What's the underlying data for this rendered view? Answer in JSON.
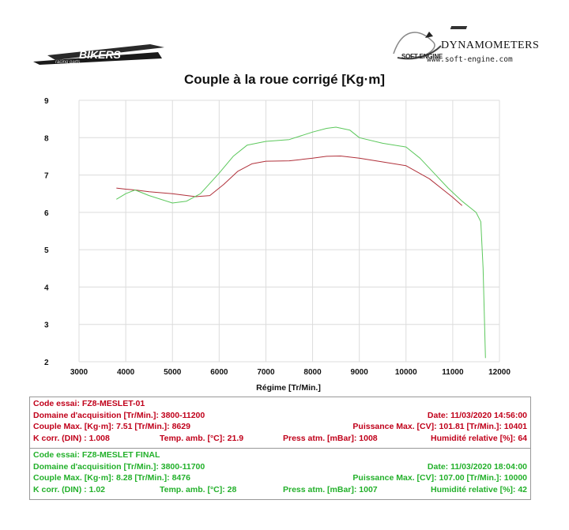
{
  "header": {
    "brand_name": "DYNAMOMETERS",
    "brand_engine": "SOFT-ENGINE",
    "brand_url": "www.soft-engine.com",
    "logo_left_text": "BIKERS racing parts"
  },
  "chart_data": {
    "type": "line",
    "title": "Couple à la roue corrigé [Kg·m]",
    "xlabel": "Régime [Tr/Min.]",
    "ylabel": "",
    "xlim": [
      3000,
      12000
    ],
    "ylim": [
      2,
      9
    ],
    "x_ticks": [
      3000,
      4000,
      5000,
      6000,
      7000,
      8000,
      9000,
      10000,
      11000,
      12000
    ],
    "y_ticks": [
      2,
      3,
      4,
      5,
      6,
      7,
      8,
      9
    ],
    "grid": true,
    "series": [
      {
        "name": "FZ8-MESLET-01",
        "color": "#b0303a",
        "x": [
          3800,
          4000,
          4200,
          4500,
          5000,
          5500,
          5800,
          6100,
          6400,
          6700,
          7000,
          7500,
          8000,
          8300,
          8600,
          9000,
          9500,
          10000,
          10500,
          10800,
          11000,
          11200
        ],
        "y": [
          6.65,
          6.62,
          6.6,
          6.55,
          6.5,
          6.42,
          6.45,
          6.75,
          7.1,
          7.3,
          7.37,
          7.38,
          7.45,
          7.5,
          7.51,
          7.45,
          7.35,
          7.25,
          6.9,
          6.6,
          6.4,
          6.18
        ]
      },
      {
        "name": "FZ8-MESLET FINAL",
        "color": "#5cc85c",
        "x": [
          3800,
          4000,
          4200,
          4500,
          5000,
          5300,
          5600,
          6000,
          6300,
          6600,
          7000,
          7500,
          8000,
          8300,
          8500,
          8800,
          9000,
          9500,
          10000,
          10300,
          10600,
          10900,
          11200,
          11500,
          11600,
          11650,
          11700
        ],
        "y": [
          6.35,
          6.5,
          6.6,
          6.45,
          6.25,
          6.3,
          6.5,
          7.05,
          7.5,
          7.8,
          7.9,
          7.95,
          8.15,
          8.25,
          8.28,
          8.2,
          8.0,
          7.85,
          7.75,
          7.45,
          7.05,
          6.65,
          6.3,
          6.0,
          5.75,
          4.5,
          2.1
        ]
      }
    ]
  },
  "test_red": {
    "code": "Code essai: FZ8-MESLET-01",
    "domain": "Domaine d'acquisition [Tr/Min.]: 3800-11200",
    "date": "Date: 11/03/2020   14:56:00",
    "couple": "Couple Max. [Kg·m]: 7.51   [Tr/Min.]: 8629",
    "puissance": "Puissance Max. [CV]: 101.81   [Tr/Min.]: 10401",
    "kcorr": "K corr. (DIN) : 1.008",
    "temp": "Temp. amb. [°C]: 21.9",
    "press": "Press atm. [mBar]: 1008",
    "humid": "Humidité relative [%]: 64"
  },
  "test_green": {
    "code": "Code essai: FZ8-MESLET FINAL",
    "domain": "Domaine d'acquisition [Tr/Min.]: 3800-11700",
    "date": "Date: 11/03/2020   18:04:00",
    "couple": "Couple Max. [Kg·m]: 8.28   [Tr/Min.]: 8476",
    "puissance": "Puissance Max. [CV]: 107.00   [Tr/Min.]: 10000",
    "kcorr": "K corr. (DIN) : 1.02",
    "temp": "Temp. amb. [°C]: 28",
    "press": "Press atm. [mBar]: 1007",
    "humid": "Humidité relative [%]: 42"
  }
}
